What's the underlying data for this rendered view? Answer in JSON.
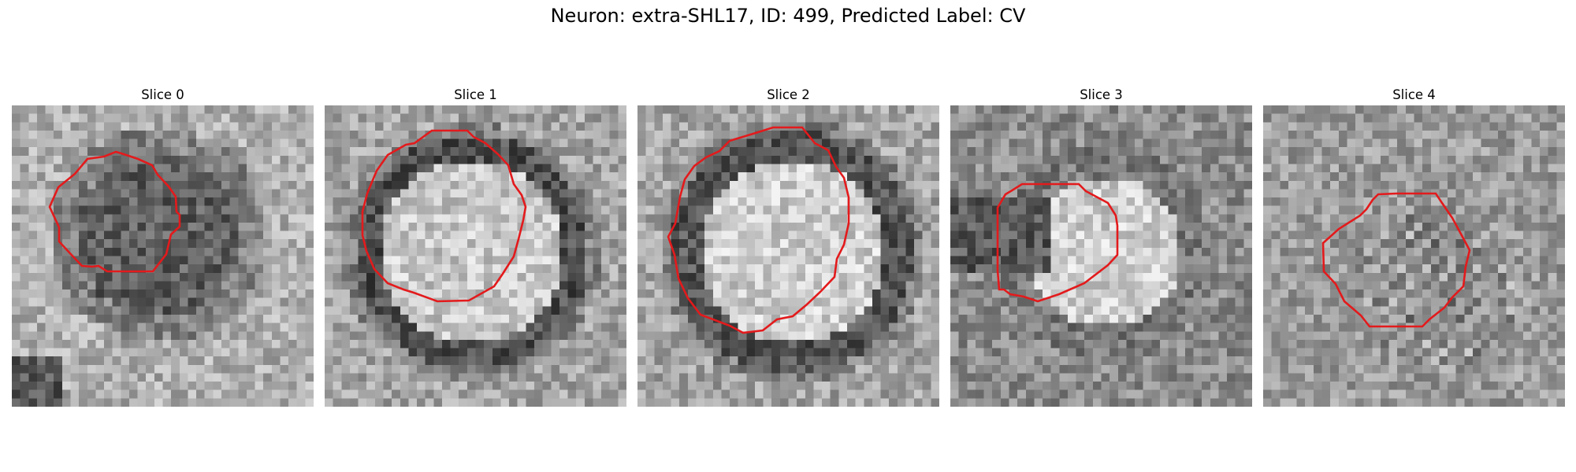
{
  "figure": {
    "title": "Neuron: extra-SHL17, ID: 499, Predicted Label: CV",
    "outline_color": "#e31a1c"
  },
  "panels": [
    {
      "title": "Slice 0",
      "interior": "dark"
    },
    {
      "title": "Slice 1",
      "interior": "bright",
      "ring": "dark"
    },
    {
      "title": "Slice 2",
      "interior": "bright",
      "ring": "dark"
    },
    {
      "title": "Slice 3",
      "interior": "bright"
    },
    {
      "title": "Slice 4",
      "interior": "mixed"
    }
  ]
}
